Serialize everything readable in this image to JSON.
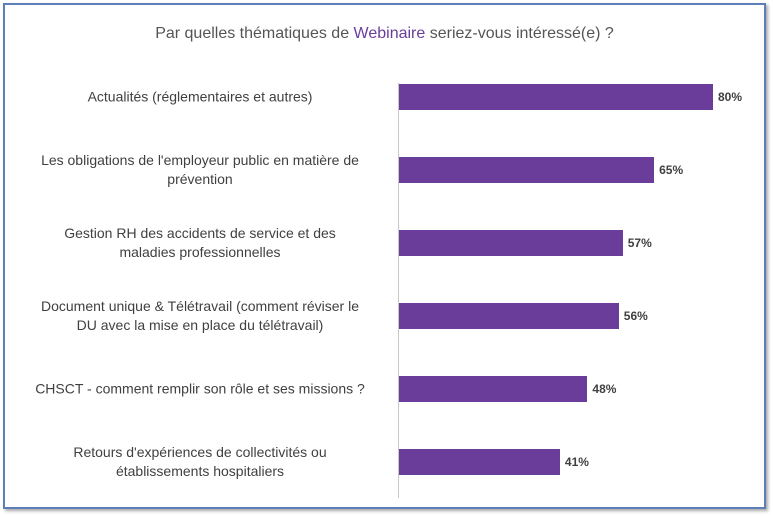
{
  "chart_data": {
    "type": "bar",
    "orientation": "horizontal",
    "title": {
      "prefix": "Par quelles thématiques de ",
      "highlight": "Webinaire",
      "suffix": " seriez-vous intéressé(e) ?"
    },
    "categories": [
      [
        "Actualités (réglementaires et autres)"
      ],
      [
        "Les obligations de l'employeur public en matière de",
        "prévention"
      ],
      [
        "Gestion RH des accidents de service et des",
        "maladies professionnelles"
      ],
      [
        "Document unique & Télétravail (comment réviser le",
        "DU avec la mise en place du télétravail)"
      ],
      [
        "CHSCT - comment remplir son rôle et ses missions ?"
      ],
      [
        "Retours d'expériences de collectivités ou",
        "établissements hospitaliers"
      ]
    ],
    "values": [
      80,
      65,
      57,
      56,
      48,
      41
    ],
    "value_labels": [
      "80%",
      "65%",
      "57%",
      "56%",
      "48%",
      "41%"
    ],
    "unit": "%",
    "xlim": [
      0,
      100
    ],
    "grid": false,
    "legend": "none",
    "colors": {
      "bar": "#6a3d9a",
      "title_accent": "#6a3d9a",
      "frame": "#5b7fb6"
    }
  }
}
